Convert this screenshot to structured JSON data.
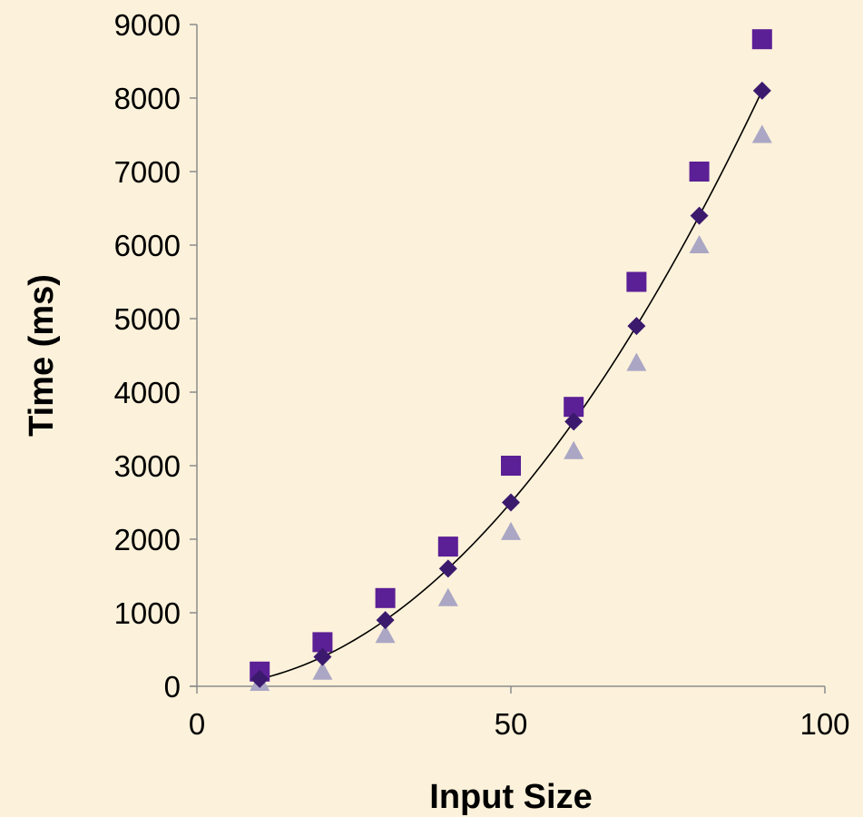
{
  "chart_data": {
    "type": "scatter",
    "title": "",
    "xlabel": "Input Size",
    "ylabel": "Time (ms)",
    "xlim": [
      0,
      100
    ],
    "ylim": [
      0,
      9000
    ],
    "x_ticks": [
      0,
      50,
      100
    ],
    "y_ticks": [
      0,
      1000,
      2000,
      3000,
      4000,
      5000,
      6000,
      7000,
      8000,
      9000
    ],
    "grid": false,
    "legend": "none",
    "x": [
      10,
      20,
      30,
      40,
      50,
      60,
      70,
      80,
      90
    ],
    "series": [
      {
        "marker": "diamond",
        "color": "#3b1a6e",
        "values": [
          100,
          400,
          900,
          1600,
          2500,
          3600,
          4900,
          6400,
          8100
        ]
      },
      {
        "marker": "square",
        "color": "#5b1f96",
        "values": [
          200,
          600,
          1200,
          1900,
          3000,
          3800,
          5500,
          7000,
          8800
        ]
      },
      {
        "marker": "triangle",
        "color": "#aaa6c4",
        "values": [
          50,
          200,
          700,
          1200,
          2100,
          3200,
          4400,
          6000,
          7500
        ]
      }
    ],
    "trendline": {
      "type": "polynomial",
      "color": "#000000",
      "x_range": [
        10,
        90
      ]
    }
  }
}
